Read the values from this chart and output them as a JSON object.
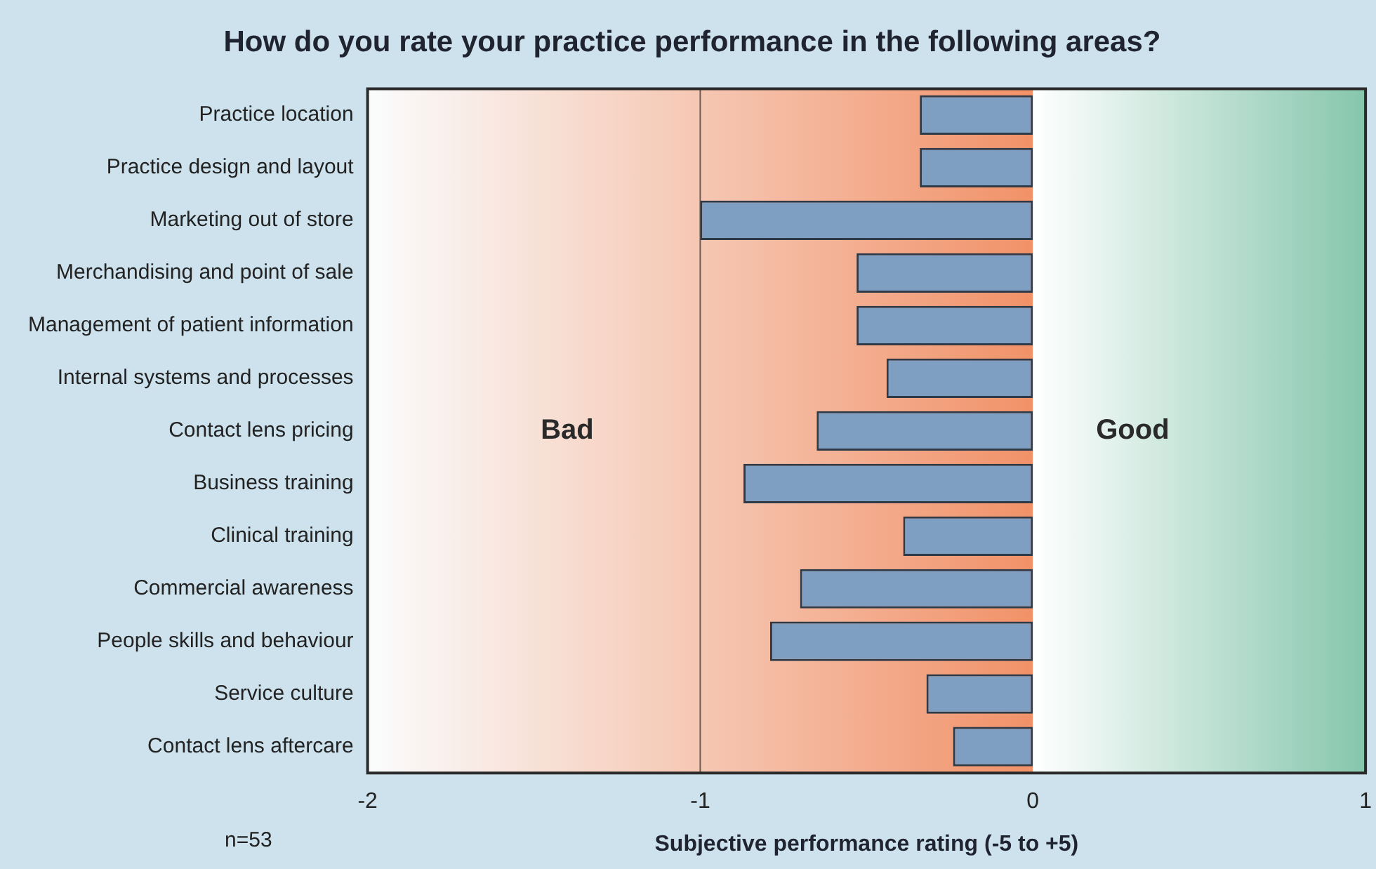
{
  "chart_data": {
    "type": "bar",
    "orientation": "horizontal",
    "title": "How do you rate your practice performance in the following areas?",
    "xlabel": "Subjective performance rating (-5 to +5)",
    "categories": [
      "Practice location",
      "Practice design and layout",
      "Marketing out of store",
      "Merchandising and point of sale",
      "Management of patient information",
      "Internal systems and processes",
      "Contact lens pricing",
      "Business training",
      "Clinical training",
      "Commercial awareness",
      "People skills and behaviour",
      "Service culture",
      "Contact lens aftercare"
    ],
    "values": [
      -0.34,
      -0.34,
      -1.0,
      -0.53,
      -0.53,
      -0.44,
      -0.65,
      -0.87,
      -0.39,
      -0.7,
      -0.79,
      -0.32,
      -0.24
    ],
    "color": "#7f9fc2",
    "xlim": [
      -2,
      1
    ],
    "xticks": [
      -2,
      -1,
      0,
      1
    ],
    "grid": false,
    "legend": false,
    "ref_lines": [
      {
        "axis": "x",
        "value": -1,
        "color": "#6b5a52"
      }
    ],
    "bands": [
      {
        "axis": "x",
        "from": -2,
        "to": 0,
        "label": "Bad",
        "color": "#f5895a"
      },
      {
        "axis": "x",
        "from": 0,
        "to": 1,
        "label": "Good",
        "color": "#86c6ad"
      }
    ],
    "annotations": [
      "n=53"
    ]
  }
}
